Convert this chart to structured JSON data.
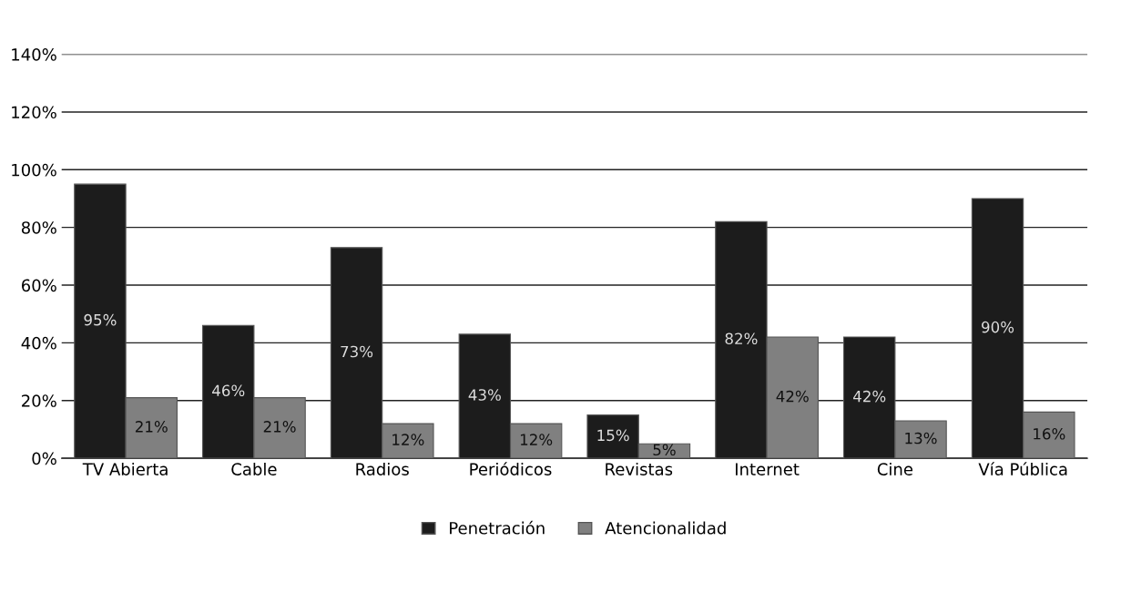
{
  "chart_data": {
    "type": "bar",
    "categories": [
      "TV Abierta",
      "Cable",
      "Radios",
      "Periódicos",
      "Revistas",
      "Internet",
      "Cine",
      "Vía Pública"
    ],
    "series": [
      {
        "name": "Penetración",
        "color": "#1c1c1c",
        "values": [
          95,
          46,
          73,
          43,
          15,
          82,
          42,
          90
        ],
        "value_labels": [
          "95%",
          "46%",
          "73%",
          "43%",
          "15%",
          "82%",
          "42%",
          "90%"
        ]
      },
      {
        "name": "Atencionalidad",
        "color": "#808080",
        "values": [
          21,
          21,
          12,
          12,
          5,
          42,
          13,
          16
        ],
        "value_labels": [
          "21%",
          "21%",
          "12%",
          "12%",
          "5%",
          "42%",
          "13%",
          "16%"
        ]
      }
    ],
    "ylim": [
      0,
      140
    ],
    "yticks": [
      {
        "value": 0,
        "label": "0%"
      },
      {
        "value": 20,
        "label": "20%"
      },
      {
        "value": 40,
        "label": "40%"
      },
      {
        "value": 60,
        "label": "60%"
      },
      {
        "value": 80,
        "label": "80%"
      },
      {
        "value": 100,
        "label": "100%"
      },
      {
        "value": 120,
        "label": "120%"
      },
      {
        "value": 140,
        "label": "140%"
      }
    ],
    "grid": "y",
    "legend": "bottom"
  }
}
